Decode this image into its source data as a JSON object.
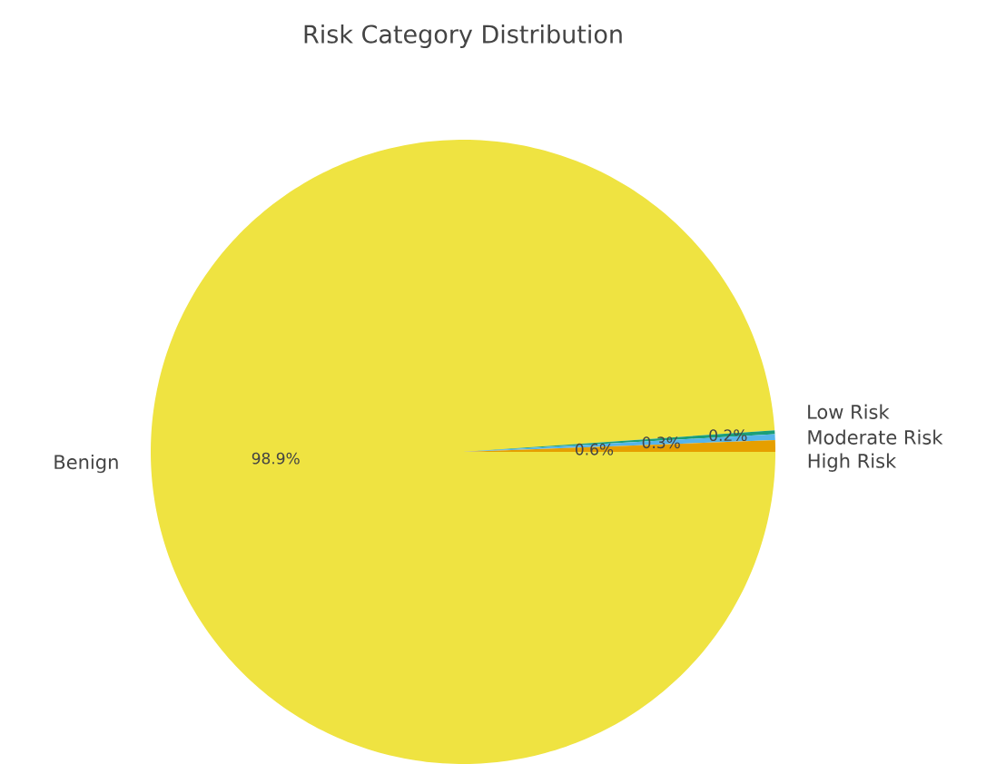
{
  "chart_data": {
    "type": "pie",
    "title": "Risk Category Distribution",
    "categories": [
      "Benign",
      "Low Risk",
      "Moderate Risk",
      "High Risk"
    ],
    "values": [
      98.9,
      0.2,
      0.3,
      0.6
    ],
    "value_labels": [
      "98.9%",
      "0.2%",
      "0.3%",
      "0.6%"
    ],
    "colors": [
      "#efe341",
      "#1a9e79",
      "#56b4e9",
      "#e69f00"
    ]
  }
}
